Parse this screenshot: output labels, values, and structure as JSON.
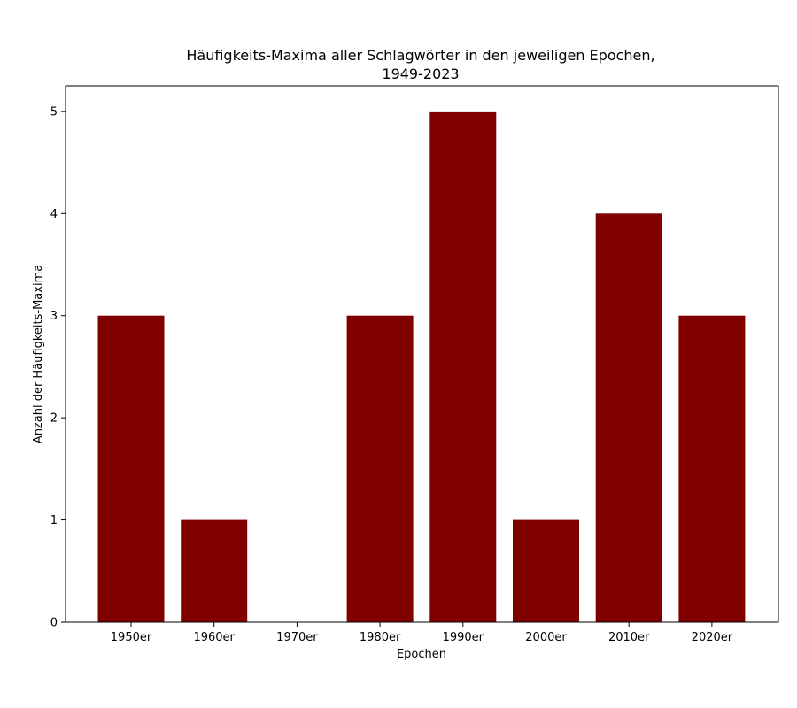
{
  "chart_data": {
    "type": "bar",
    "title": [
      "Häufigkeits-Maxima aller Schlagwörter in den jeweiligen Epochen,",
      "1949-2023"
    ],
    "xlabel": "Epochen",
    "ylabel": "Anzahl der Häufigkeits-Maxima",
    "categories": [
      "1950er",
      "1960er",
      "1970er",
      "1980er",
      "1990er",
      "2000er",
      "2010er",
      "2020er"
    ],
    "values": [
      3,
      1,
      0,
      3,
      5,
      1,
      4,
      3
    ],
    "ylim": [
      0,
      5.25
    ],
    "yticks": [
      "0",
      "1",
      "2",
      "3",
      "4",
      "5"
    ],
    "bar_color": "#800000",
    "grid": false,
    "legend": "none"
  }
}
